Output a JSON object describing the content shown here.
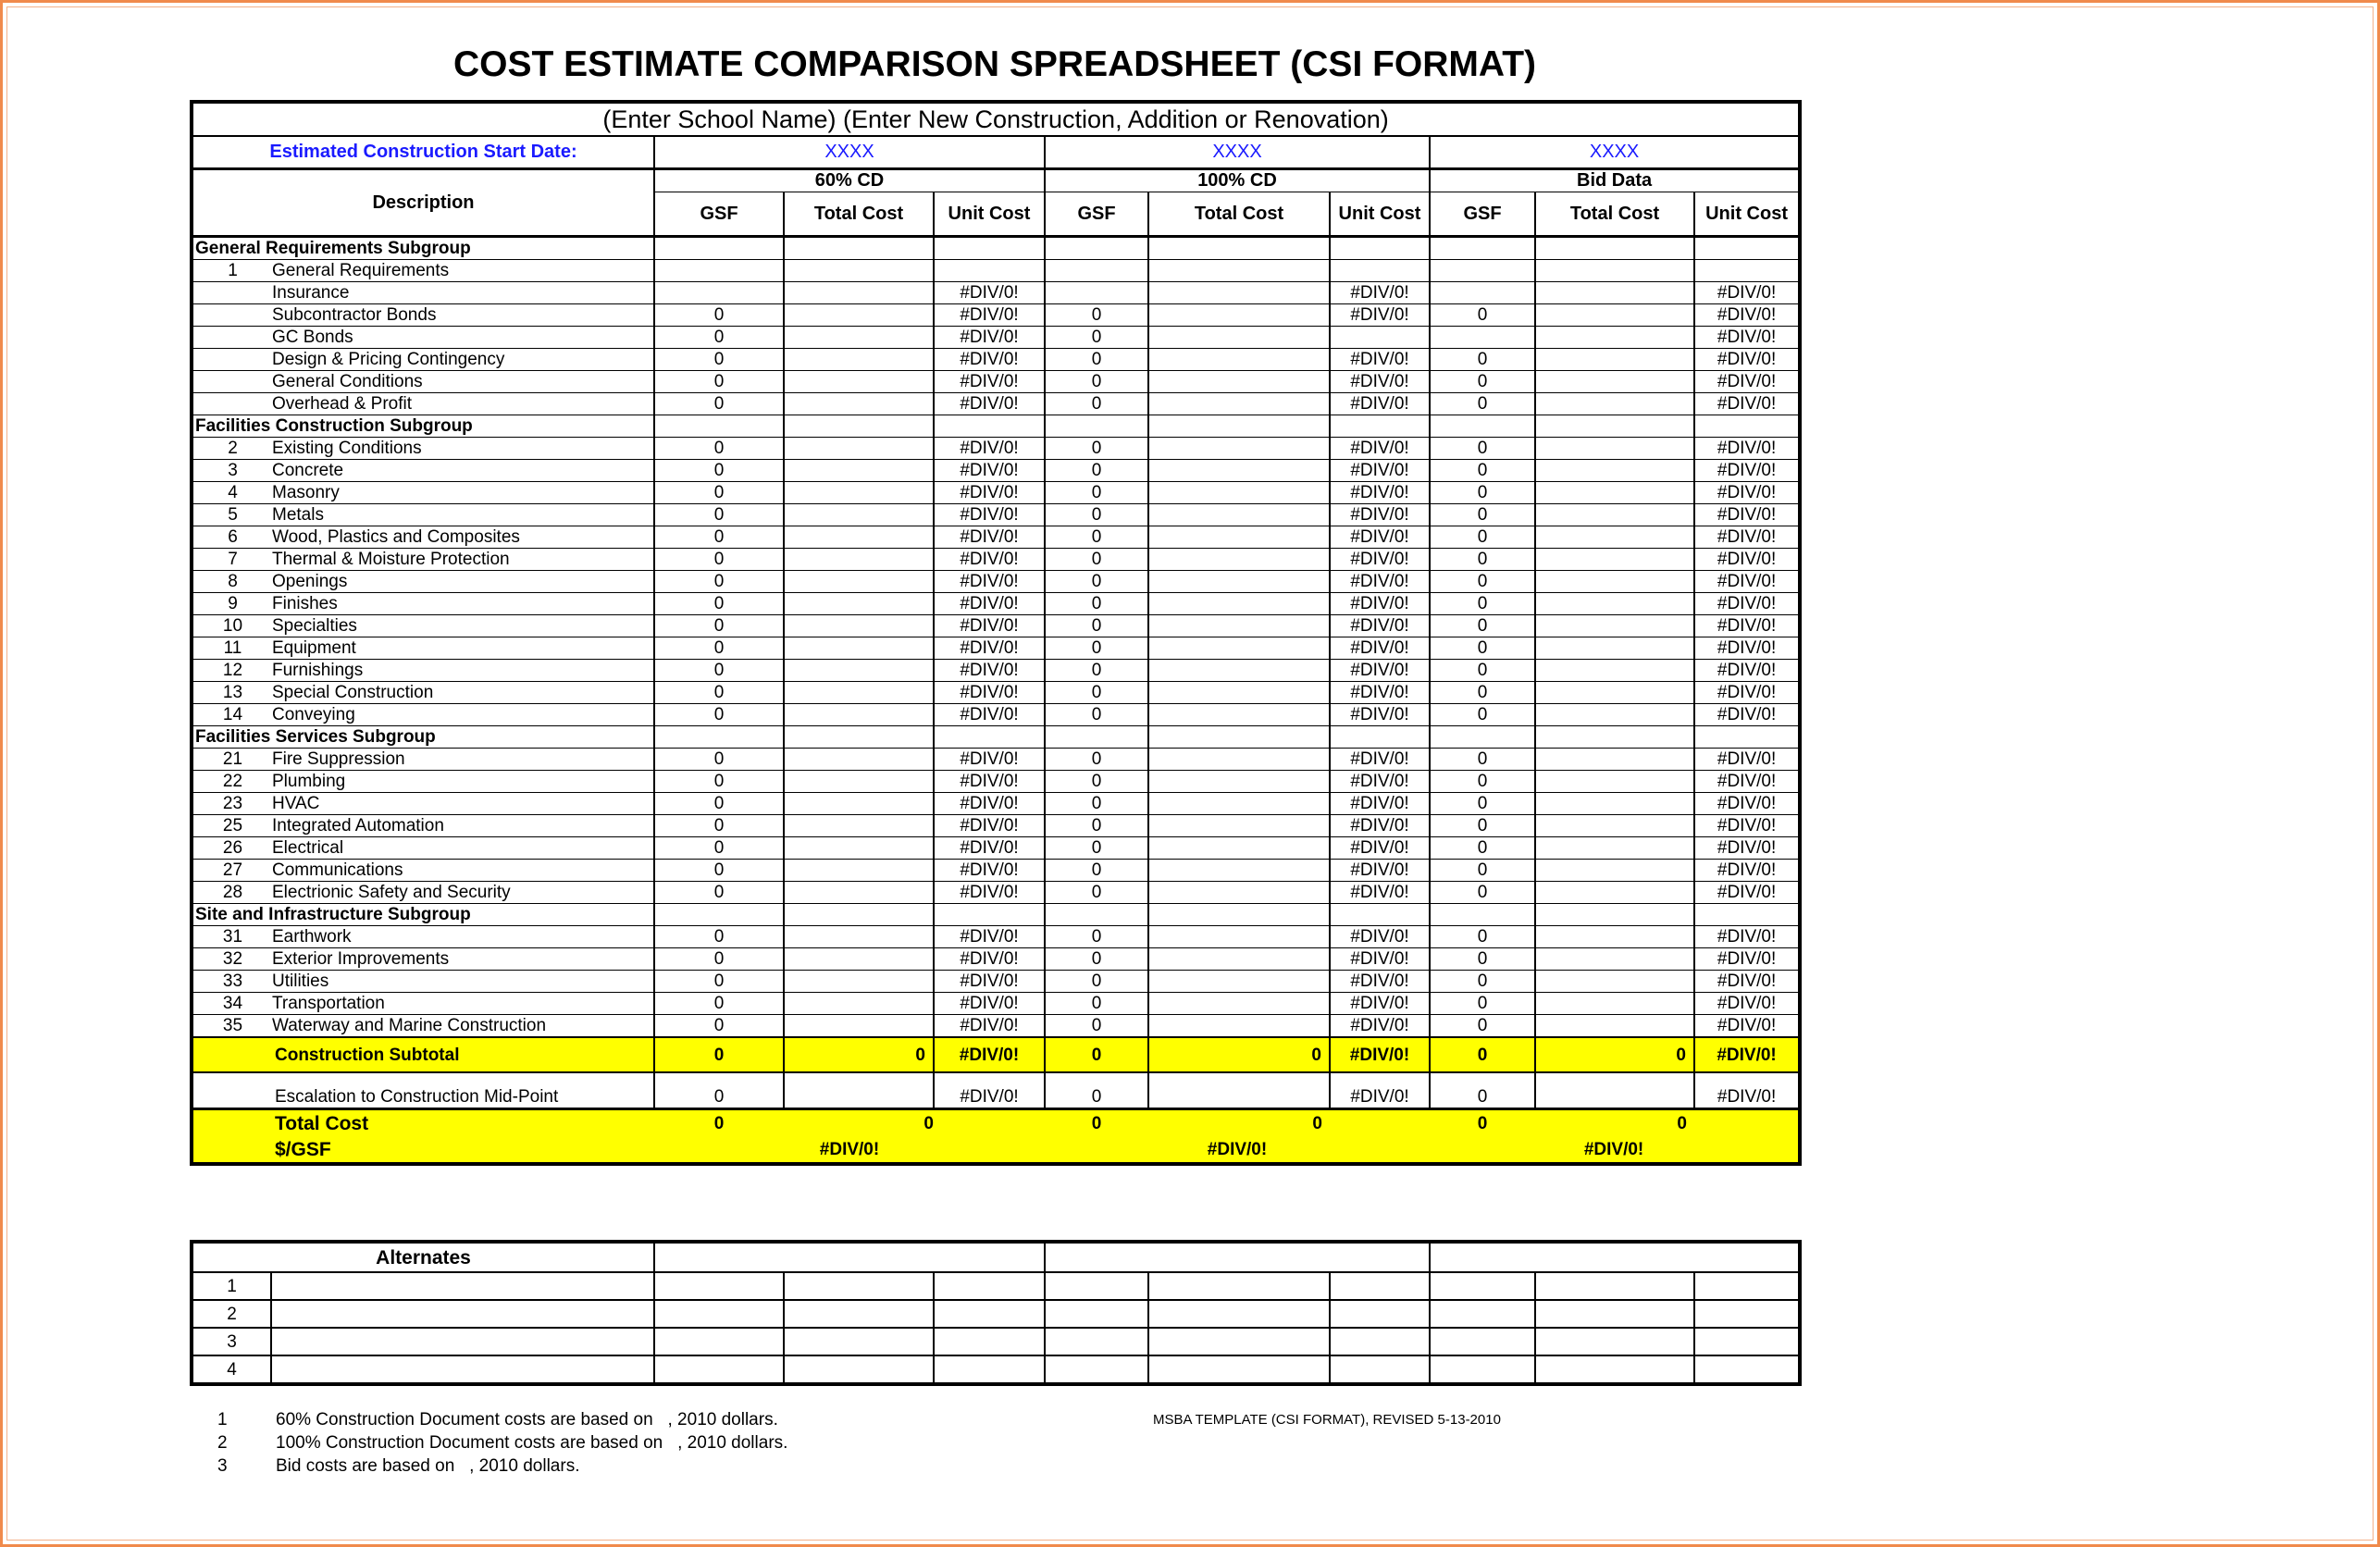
{
  "title": "COST ESTIMATE COMPARISON SPREADSHEET (CSI FORMAT)",
  "banner": "(Enter School Name) (Enter New Construction, Addition or Renovation)",
  "start_date_label": "Estimated Construction Start Date:",
  "start_dates": [
    "XXXX",
    "XXXX",
    "XXXX"
  ],
  "phases": [
    "60% CD",
    "100% CD",
    "Bid Data"
  ],
  "description_header": "Description",
  "col_headers": [
    "GSF",
    "Total Cost",
    "Unit Cost"
  ],
  "rows": [
    {
      "type": "section",
      "label": "General Requirements Subgroup"
    },
    {
      "type": "item",
      "num": "1",
      "label": "General Requirements",
      "cells": [
        "",
        "",
        "",
        "",
        "",
        "",
        "",
        "",
        ""
      ]
    },
    {
      "type": "item",
      "num": "",
      "label": "Insurance",
      "cells": [
        "",
        "",
        "#DIV/0!",
        "",
        "",
        "#DIV/0!",
        "",
        "",
        "#DIV/0!"
      ]
    },
    {
      "type": "item",
      "num": "",
      "label": "Subcontractor Bonds",
      "cells": [
        "0",
        "",
        "#DIV/0!",
        "0",
        "",
        "#DIV/0!",
        "0",
        "",
        "#DIV/0!"
      ]
    },
    {
      "type": "item",
      "num": "",
      "label": "GC Bonds",
      "cells": [
        "0",
        "",
        "#DIV/0!",
        "0",
        "",
        "",
        "",
        "",
        "#DIV/0!"
      ]
    },
    {
      "type": "item",
      "num": "",
      "label": "Design & Pricing Contingency",
      "cells": [
        "0",
        "",
        "#DIV/0!",
        "0",
        "",
        "#DIV/0!",
        "0",
        "",
        "#DIV/0!"
      ]
    },
    {
      "type": "item",
      "num": "",
      "label": "General Conditions",
      "cells": [
        "0",
        "",
        "#DIV/0!",
        "0",
        "",
        "#DIV/0!",
        "0",
        "",
        "#DIV/0!"
      ]
    },
    {
      "type": "item",
      "num": "",
      "label": "Overhead & Profit",
      "cells": [
        "0",
        "",
        "#DIV/0!",
        "0",
        "",
        "#DIV/0!",
        "0",
        "",
        "#DIV/0!"
      ]
    },
    {
      "type": "section",
      "label": "Facilities Construction Subgroup"
    },
    {
      "type": "item",
      "num": "2",
      "label": "Existing Conditions",
      "cells": [
        "0",
        "",
        "#DIV/0!",
        "0",
        "",
        "#DIV/0!",
        "0",
        "",
        "#DIV/0!"
      ]
    },
    {
      "type": "item",
      "num": "3",
      "label": "Concrete",
      "cells": [
        "0",
        "",
        "#DIV/0!",
        "0",
        "",
        "#DIV/0!",
        "0",
        "",
        "#DIV/0!"
      ]
    },
    {
      "type": "item",
      "num": "4",
      "label": "Masonry",
      "cells": [
        "0",
        "",
        "#DIV/0!",
        "0",
        "",
        "#DIV/0!",
        "0",
        "",
        "#DIV/0!"
      ]
    },
    {
      "type": "item",
      "num": "5",
      "label": "Metals",
      "cells": [
        "0",
        "",
        "#DIV/0!",
        "0",
        "",
        "#DIV/0!",
        "0",
        "",
        "#DIV/0!"
      ]
    },
    {
      "type": "item",
      "num": "6",
      "label": "Wood, Plastics and Composites",
      "cells": [
        "0",
        "",
        "#DIV/0!",
        "0",
        "",
        "#DIV/0!",
        "0",
        "",
        "#DIV/0!"
      ]
    },
    {
      "type": "item",
      "num": "7",
      "label": "Thermal & Moisture Protection",
      "cells": [
        "0",
        "",
        "#DIV/0!",
        "0",
        "",
        "#DIV/0!",
        "0",
        "",
        "#DIV/0!"
      ]
    },
    {
      "type": "item",
      "num": "8",
      "label": "Openings",
      "cells": [
        "0",
        "",
        "#DIV/0!",
        "0",
        "",
        "#DIV/0!",
        "0",
        "",
        "#DIV/0!"
      ]
    },
    {
      "type": "item",
      "num": "9",
      "label": "Finishes",
      "cells": [
        "0",
        "",
        "#DIV/0!",
        "0",
        "",
        "#DIV/0!",
        "0",
        "",
        "#DIV/0!"
      ]
    },
    {
      "type": "item",
      "num": "10",
      "label": "Specialties",
      "cells": [
        "0",
        "",
        "#DIV/0!",
        "0",
        "",
        "#DIV/0!",
        "0",
        "",
        "#DIV/0!"
      ]
    },
    {
      "type": "item",
      "num": "11",
      "label": "Equipment",
      "cells": [
        "0",
        "",
        "#DIV/0!",
        "0",
        "",
        "#DIV/0!",
        "0",
        "",
        "#DIV/0!"
      ]
    },
    {
      "type": "item",
      "num": "12",
      "label": "Furnishings",
      "cells": [
        "0",
        "",
        "#DIV/0!",
        "0",
        "",
        "#DIV/0!",
        "0",
        "",
        "#DIV/0!"
      ]
    },
    {
      "type": "item",
      "num": "13",
      "label": "Special Construction",
      "cells": [
        "0",
        "",
        "#DIV/0!",
        "0",
        "",
        "#DIV/0!",
        "0",
        "",
        "#DIV/0!"
      ]
    },
    {
      "type": "item",
      "num": "14",
      "label": "Conveying",
      "cells": [
        "0",
        "",
        "#DIV/0!",
        "0",
        "",
        "#DIV/0!",
        "0",
        "",
        "#DIV/0!"
      ]
    },
    {
      "type": "section",
      "label": "Facilities Services Subgroup"
    },
    {
      "type": "item",
      "num": "21",
      "label": "Fire Suppression",
      "cells": [
        "0",
        "",
        "#DIV/0!",
        "0",
        "",
        "#DIV/0!",
        "0",
        "",
        "#DIV/0!"
      ]
    },
    {
      "type": "item",
      "num": "22",
      "label": "Plumbing",
      "cells": [
        "0",
        "",
        "#DIV/0!",
        "0",
        "",
        "#DIV/0!",
        "0",
        "",
        "#DIV/0!"
      ]
    },
    {
      "type": "item",
      "num": "23",
      "label": "HVAC",
      "cells": [
        "0",
        "",
        "#DIV/0!",
        "0",
        "",
        "#DIV/0!",
        "0",
        "",
        "#DIV/0!"
      ]
    },
    {
      "type": "item",
      "num": "25",
      "label": "Integrated Automation",
      "cells": [
        "0",
        "",
        "#DIV/0!",
        "0",
        "",
        "#DIV/0!",
        "0",
        "",
        "#DIV/0!"
      ]
    },
    {
      "type": "item",
      "num": "26",
      "label": "Electrical",
      "cells": [
        "0",
        "",
        "#DIV/0!",
        "0",
        "",
        "#DIV/0!",
        "0",
        "",
        "#DIV/0!"
      ]
    },
    {
      "type": "item",
      "num": "27",
      "label": "Communications",
      "cells": [
        "0",
        "",
        "#DIV/0!",
        "0",
        "",
        "#DIV/0!",
        "0",
        "",
        "#DIV/0!"
      ]
    },
    {
      "type": "item",
      "num": "28",
      "label": "Electrionic Safety and Security",
      "cells": [
        "0",
        "",
        "#DIV/0!",
        "0",
        "",
        "#DIV/0!",
        "0",
        "",
        "#DIV/0!"
      ]
    },
    {
      "type": "section",
      "label": "Site and Infrastructure Subgroup"
    },
    {
      "type": "item",
      "num": "31",
      "label": "Earthwork",
      "cells": [
        "0",
        "",
        "#DIV/0!",
        "0",
        "",
        "#DIV/0!",
        "0",
        "",
        "#DIV/0!"
      ]
    },
    {
      "type": "item",
      "num": "32",
      "label": "Exterior Improvements",
      "cells": [
        "0",
        "",
        "#DIV/0!",
        "0",
        "",
        "#DIV/0!",
        "0",
        "",
        "#DIV/0!"
      ]
    },
    {
      "type": "item",
      "num": "33",
      "label": "Utilities",
      "cells": [
        "0",
        "",
        "#DIV/0!",
        "0",
        "",
        "#DIV/0!",
        "0",
        "",
        "#DIV/0!"
      ]
    },
    {
      "type": "item",
      "num": "34",
      "label": "Transportation",
      "cells": [
        "0",
        "",
        "#DIV/0!",
        "0",
        "",
        "#DIV/0!",
        "0",
        "",
        "#DIV/0!"
      ]
    },
    {
      "type": "item",
      "num": "35",
      "label": "Waterway and Marine Construction",
      "cells": [
        "0",
        "",
        "#DIV/0!",
        "0",
        "",
        "#DIV/0!",
        "0",
        "",
        "#DIV/0!"
      ]
    }
  ],
  "subtotal": {
    "label": "Construction Subtotal",
    "cells": [
      "0",
      "0",
      "#DIV/0!",
      "0",
      "0",
      "#DIV/0!",
      "0",
      "0",
      "#DIV/0!"
    ]
  },
  "escalation": {
    "label": "Escalation to Construction Mid-Point",
    "cells": [
      "0",
      "",
      "#DIV/0!",
      "0",
      "",
      "#DIV/0!",
      "0",
      "",
      "#DIV/0!"
    ]
  },
  "total_cost": {
    "label": "Total Cost",
    "values": [
      [
        "0",
        "0"
      ],
      [
        "0",
        "0"
      ],
      [
        "0",
        "0"
      ]
    ]
  },
  "per_gsf": {
    "label": "$/GSF",
    "values": [
      "#DIV/0!",
      "#DIV/0!",
      "#DIV/0!"
    ]
  },
  "alternates": {
    "header": "Alternates",
    "rows": [
      "1",
      "2",
      "3",
      "4"
    ]
  },
  "footnotes": [
    {
      "num": "1",
      "text": "60% Construction Document costs are based on   , 2010 dollars."
    },
    {
      "num": "2",
      "text": "100% Construction Document costs are based on   , 2010 dollars."
    },
    {
      "num": "3",
      "text": "Bid costs are based on   , 2010 dollars."
    }
  ],
  "template_note": "MSBA TEMPLATE (CSI FORMAT), REVISED  5-13-2010",
  "colors": {
    "highlight": "#ffff00",
    "link_blue": "#1a1aff",
    "frame": "#f08a4b"
  }
}
